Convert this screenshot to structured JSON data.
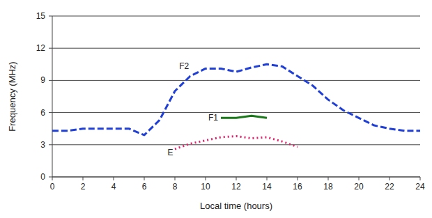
{
  "chart_data": {
    "type": "line",
    "xlabel": "Local time (hours)",
    "ylabel": "Frequency (MHz)",
    "xlim": [
      0,
      24
    ],
    "xticks": [
      0,
      2,
      4,
      6,
      8,
      10,
      12,
      14,
      16,
      18,
      20,
      22,
      24
    ],
    "ylim": [
      0,
      15
    ],
    "yticks": [
      0,
      3,
      6,
      9,
      12,
      15
    ],
    "grid": true,
    "series": [
      {
        "name": "F2",
        "color": "#1f3fd6",
        "line_style": "dashed",
        "x": [
          0,
          1,
          2,
          3,
          4,
          5,
          6,
          7,
          8,
          9,
          10,
          11,
          12,
          13,
          14,
          15,
          16,
          17,
          18,
          19,
          20,
          21,
          22,
          23,
          24
        ],
        "values": [
          4.3,
          4.3,
          4.5,
          4.5,
          4.5,
          4.5,
          3.9,
          5.3,
          8.0,
          9.4,
          10.1,
          10.1,
          9.8,
          10.2,
          10.5,
          10.3,
          9.4,
          8.5,
          7.2,
          6.2,
          5.5,
          4.8,
          4.5,
          4.3,
          4.3
        ]
      },
      {
        "name": "F1",
        "color": "#1a7a1a",
        "line_style": "solid",
        "x": [
          11,
          12,
          13,
          14
        ],
        "values": [
          5.5,
          5.5,
          5.7,
          5.5
        ]
      },
      {
        "name": "E",
        "color": "#e0206a",
        "line_style": "dotted",
        "x": [
          8,
          9,
          10,
          11,
          12,
          13,
          14,
          15,
          16
        ],
        "values": [
          2.6,
          3.1,
          3.4,
          3.7,
          3.8,
          3.6,
          3.7,
          3.3,
          2.8
        ]
      }
    ],
    "annotations": [
      {
        "text": "F2",
        "x": 8.6,
        "y": 10.3
      },
      {
        "text": "F1",
        "x": 10.5,
        "y": 5.5
      },
      {
        "text": "E",
        "x": 7.7,
        "y": 2.3
      }
    ]
  }
}
